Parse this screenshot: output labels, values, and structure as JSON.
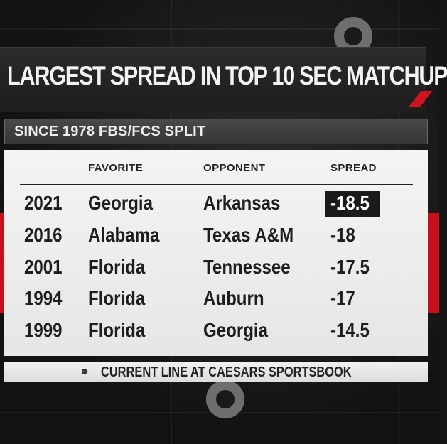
{
  "graphic": {
    "title": "LARGEST SPREAD IN TOP 10 SEC MATCHUP",
    "subtitle": "SINCE 1978 FBS/FCS SPLIT",
    "columns": [
      "FAVORITE",
      "OPPONENT",
      "SPREAD"
    ],
    "rows": [
      {
        "year": "2021",
        "favorite": "Georgia",
        "opponent": "Arkansas",
        "spread": "-18.5",
        "highlighted": true
      },
      {
        "year": "2016",
        "favorite": "Alabama",
        "opponent": "Texas A&M",
        "spread": "-18",
        "highlighted": false
      },
      {
        "year": "2001",
        "favorite": "Florida",
        "opponent": "Tennessee",
        "spread": "-17.5",
        "highlighted": false
      },
      {
        "year": "1994",
        "favorite": "Florida",
        "opponent": "Auburn",
        "spread": "-17",
        "highlighted": false
      },
      {
        "year": "1999",
        "favorite": "Florida",
        "opponent": "Georgia",
        "spread": "-14.5",
        "highlighted": false
      }
    ],
    "footer": "CURRENT LINE AT CAESARS SPORTSBOOK",
    "footer_icon": "triple-chevron-icon",
    "colors": {
      "accent_red": "#c8101d",
      "highlight_bg": "#1a1a1a",
      "panel": "#f0f0f0"
    }
  }
}
